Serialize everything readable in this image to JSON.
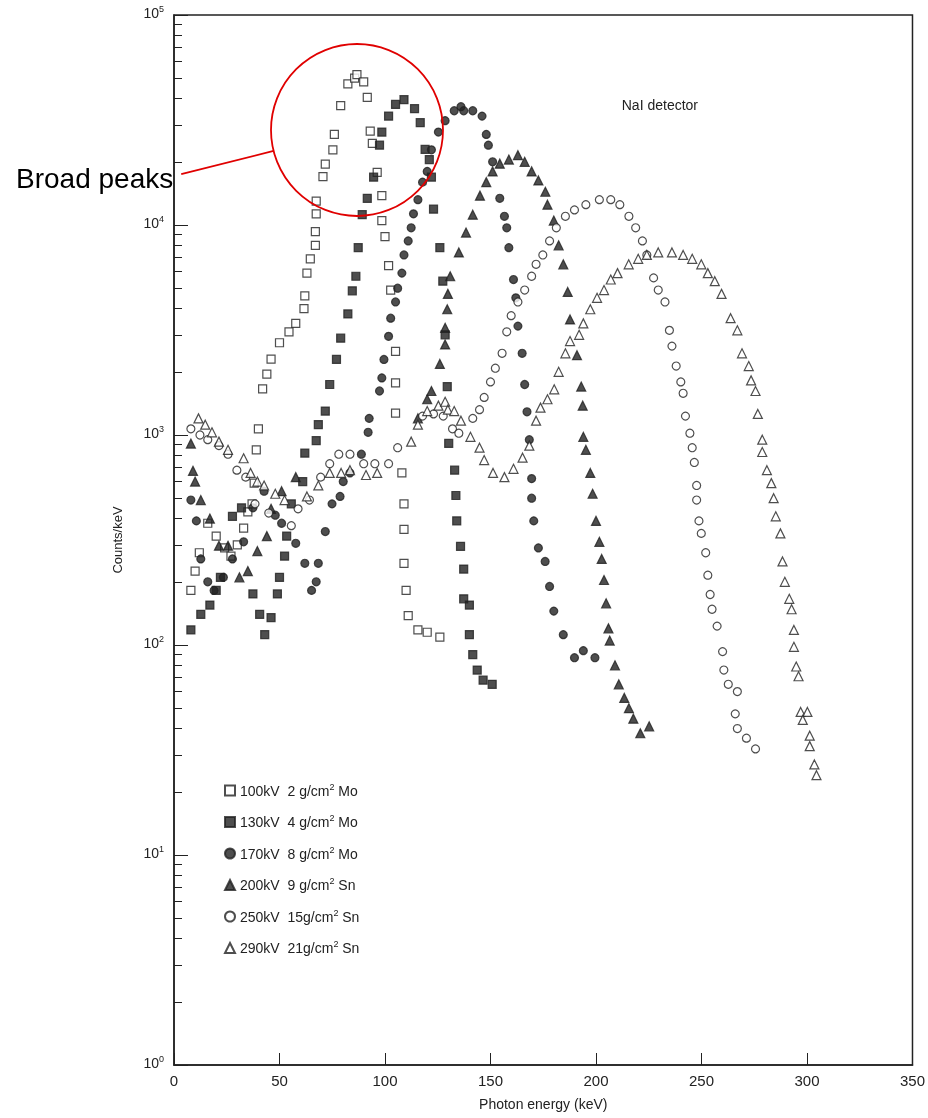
{
  "chart_data": {
    "type": "scatter",
    "xlabel": "Photon energy (keV)",
    "ylabel": "Counts/keV",
    "annotations": [
      "NaI detector",
      "Broad peaks"
    ],
    "log": "y",
    "grid": false,
    "legend": "bottom left",
    "xlim": [
      0,
      350
    ],
    "xticks": [
      0,
      50,
      100,
      150,
      200,
      250,
      300,
      350
    ],
    "ylim": [
      1,
      100000
    ],
    "yticks": [
      {
        "value": 1,
        "label": "10$^{0}$"
      },
      {
        "value": 10,
        "label": "10$^{1}$"
      },
      {
        "value": 100,
        "label": "10$^{2}$"
      },
      {
        "value": 1000,
        "label": "10$^{3}$"
      },
      {
        "value": 10000,
        "label": "10$^{4}$"
      },
      {
        "value": 100000,
        "label": "10$^{5}$"
      }
    ],
    "series": [
      {
        "name": "100kV  2 g/cm$^{2}$ Mo",
        "color": "#ffffff",
        "marker": "square",
        "x": [
          8,
          10,
          12,
          16,
          20,
          24,
          27,
          30,
          33,
          35,
          37,
          38,
          39,
          40,
          42,
          44,
          46,
          50,
          54.5,
          57.7,
          61.6,
          62,
          63,
          64.6,
          67,
          67,
          67.4,
          67.4,
          70.6,
          71.7,
          75.3,
          76,
          79,
          82.4,
          85.6,
          86.7,
          89.9,
          91.6,
          93,
          94,
          96.3,
          98.5,
          98.5,
          100,
          101.7,
          102.7,
          105,
          105,
          105,
          108,
          109,
          109,
          109,
          110,
          111,
          115.6,
          120,
          126
        ],
        "values": [
          182,
          225,
          275,
          380,
          330,
          290,
          265,
          300,
          360,
          430,
          470,
          590,
          850,
          1070,
          1660,
          1950,
          2300,
          2750,
          3100,
          3400,
          4000,
          4600,
          5900,
          6900,
          8000,
          9300,
          11300,
          13000,
          17000,
          19500,
          22800,
          27000,
          37000,
          47000,
          50000,
          52000,
          48000,
          40500,
          28000,
          24500,
          17800,
          13800,
          10500,
          8800,
          6400,
          4900,
          2500,
          1770,
          1270,
          660,
          470,
          355,
          245,
          182,
          138,
          118,
          115,
          109
        ]
      },
      {
        "name": "130kV  4 g/cm$^{2}$ Mo",
        "color": "#222222",
        "marker": "square",
        "x": [
          8,
          12.7,
          17,
          20,
          22,
          27.7,
          32,
          37.4,
          40.6,
          43,
          46,
          49,
          50,
          52.4,
          53.4,
          55.6,
          61,
          62,
          67.4,
          68.4,
          71.7,
          73.8,
          77,
          79,
          82.4,
          84.5,
          86.2,
          87.3,
          89.2,
          91.6,
          94.6,
          97.4,
          98.5,
          101.7,
          105,
          109,
          114,
          116.7,
          119,
          121,
          122,
          123,
          126,
          127.4,
          128.5,
          129.5,
          130.2,
          133,
          133.6,
          134,
          135.8,
          137.3,
          137.3,
          140,
          140,
          141.6,
          143.7,
          146.5,
          150.8
        ],
        "values": [
          118,
          140,
          155,
          182,
          210,
          410,
          450,
          175,
          140,
          112,
          135,
          175,
          210,
          265,
          330,
          470,
          600,
          820,
          940,
          1120,
          1300,
          1740,
          2290,
          2890,
          3770,
          4860,
          5700,
          7800,
          11200,
          13400,
          16900,
          24000,
          27700,
          33000,
          37500,
          39500,
          35800,
          30700,
          22900,
          20500,
          16900,
          11900,
          7800,
          5400,
          3000,
          1700,
          912,
          680,
          515,
          390,
          295,
          230,
          166,
          155,
          112,
          90,
          76,
          68,
          65
        ]
      },
      {
        "name": "170kV  8 g/cm$^{2}$ Mo",
        "color": "#222222",
        "marker": "circle",
        "x": [
          8,
          10.6,
          12.7,
          16,
          19,
          23.4,
          27.7,
          33,
          37.4,
          42.7,
          48,
          51,
          57.7,
          62,
          65.2,
          67.4,
          68.4,
          71.7,
          74.9,
          78.7,
          80.2,
          83.4,
          88.8,
          92,
          92.5,
          97.4,
          98.5,
          99.5,
          101.7,
          102.7,
          105,
          106,
          108,
          109,
          111,
          112.4,
          113.5,
          115.6,
          117.8,
          120,
          122,
          125.3,
          128.5,
          132.8,
          136,
          137.3,
          141.6,
          146,
          148,
          149,
          151,
          154.4,
          156.6,
          157.7,
          158.7,
          160.9,
          162,
          163,
          165,
          166.2,
          167.3,
          168.4,
          169.5,
          169.5,
          170.5,
          172.7,
          175.9,
          178,
          180,
          184.5,
          189.8,
          194,
          199.5
        ],
        "values": [
          490,
          390,
          257,
          200,
          182,
          210,
          257,
          310,
          450,
          540,
          415,
          380,
          305,
          245,
          182,
          200,
          245,
          347,
          470,
          510,
          600,
          660,
          810,
          1030,
          1200,
          1620,
          1870,
          2290,
          2950,
          3600,
          4300,
          5000,
          5900,
          7200,
          8400,
          9700,
          11300,
          13200,
          16000,
          18000,
          22800,
          27700,
          31400,
          35000,
          36600,
          35000,
          35000,
          33000,
          27000,
          24000,
          20000,
          13400,
          11000,
          9700,
          7800,
          5500,
          4500,
          3300,
          2450,
          1740,
          1290,
          950,
          620,
          500,
          390,
          290,
          250,
          190,
          145,
          112,
          87,
          94,
          87
        ]
      },
      {
        "name": "200kV  9 g/cm$^{2}$ Sn",
        "color": "#222222",
        "marker": "triangle",
        "x": [
          8,
          9,
          10,
          12.7,
          17,
          21.3,
          25.6,
          31,
          35,
          39.5,
          44,
          46,
          51,
          57.7,
          115.6,
          120,
          122,
          126,
          128.5,
          128.5,
          129.5,
          129.8,
          130.9,
          135,
          138.4,
          141.6,
          145,
          148,
          151,
          154.4,
          158.7,
          163,
          166.2,
          169.5,
          172.7,
          176,
          177,
          180,
          182.3,
          184.5,
          186.6,
          187.7,
          191,
          193,
          193.7,
          194,
          195.2,
          197.3,
          198.4,
          200,
          201.6,
          202.7,
          203.8,
          204.8,
          205.9,
          206.5,
          209,
          210.8,
          213.4,
          215.6,
          217.7,
          221,
          225.2
        ],
        "values": [
          910,
          675,
          600,
          490,
          400,
          297,
          297,
          210,
          225,
          280,
          330,
          445,
          540,
          630,
          1200,
          1480,
          1620,
          2180,
          2700,
          3240,
          3970,
          4700,
          5700,
          7400,
          9200,
          11200,
          13800,
          16000,
          18000,
          19600,
          20500,
          21500,
          20000,
          18000,
          16300,
          14400,
          12500,
          10500,
          8000,
          6500,
          4800,
          3550,
          2400,
          1700,
          1380,
          980,
          850,
          660,
          525,
          390,
          310,
          257,
          204,
          158,
          120,
          105,
          80,
          65,
          56,
          50,
          44.6,
          38,
          41
        ]
      },
      {
        "name": "250kV  15g/cm$^{2}$ Sn",
        "color": "#ffffff",
        "marker": "circle",
        "x": [
          8,
          12.3,
          16,
          21.3,
          25.6,
          29.8,
          34,
          38.4,
          44.9,
          55.6,
          58.8,
          64.2,
          69.5,
          73.8,
          78.1,
          83.4,
          89.9,
          95.2,
          101.7,
          106,
          117.8,
          123,
          127.6,
          132,
          135,
          141.6,
          144.8,
          147,
          150,
          152.3,
          155.5,
          157.7,
          159.8,
          163,
          166.2,
          169.5,
          171.6,
          174.8,
          178,
          181.2,
          185.5,
          189.8,
          195.2,
          201.6,
          207,
          211.3,
          215.6,
          218.8,
          222,
          224.1,
          227.3,
          229.5,
          232.7,
          234.8,
          236,
          238,
          240.2,
          241.3,
          242.4,
          244.5,
          245.6,
          246.6,
          247.7,
          247.7,
          248.8,
          249.9,
          252,
          253,
          254.1,
          255,
          257.4,
          260,
          260.6,
          262.7,
          267,
          266,
          267,
          271.3,
          275.6
        ],
        "values": [
          1070,
          1000,
          950,
          890,
          810,
          680,
          630,
          470,
          425,
          370,
          445,
          490,
          630,
          730,
          810,
          810,
          730,
          730,
          730,
          870,
          1230,
          1260,
          1230,
          1070,
          1020,
          1200,
          1320,
          1510,
          1790,
          2080,
          2450,
          3100,
          3700,
          4300,
          4900,
          5700,
          6500,
          7200,
          8400,
          9700,
          11000,
          11800,
          12500,
          13200,
          13200,
          12500,
          11000,
          9700,
          8400,
          7200,
          5600,
          4900,
          4300,
          3150,
          2650,
          2130,
          1790,
          1580,
          1230,
          1020,
          870,
          740,
          575,
          490,
          390,
          340,
          275,
          215,
          174,
          148,
          123,
          93,
          76,
          65,
          60,
          47,
          40,
          36,
          32
        ]
      },
      {
        "name": "290kV  21g/cm$^{2}$ Sn",
        "color": "#ffffff",
        "marker": "triangle",
        "x": [
          11.6,
          14.8,
          18,
          21.3,
          25.6,
          33,
          36.3,
          39.5,
          42.7,
          48,
          52.4,
          63,
          68.4,
          73.8,
          79.2,
          83.4,
          91,
          96.3,
          112.4,
          115.6,
          120,
          125.3,
          128.5,
          129.8,
          132.8,
          136,
          140.5,
          144.8,
          147,
          151.2,
          156.6,
          160.9,
          165.2,
          168.4,
          171.6,
          173.7,
          177,
          180.2,
          182.3,
          185.5,
          187.7,
          192,
          194,
          197.3,
          200.5,
          203.8,
          207,
          210.2,
          215.5,
          220,
          224.1,
          229.5,
          236,
          241.3,
          245.6,
          249.9,
          253,
          256.3,
          259.5,
          263.8,
          267,
          269.2,
          272.4,
          273.5,
          275.6,
          276.7,
          278.8,
          278.8,
          281,
          283.1,
          284.2,
          285.2,
          287.4,
          288.4,
          289.5,
          291.6,
          292.7,
          293.8,
          293.8,
          294.9,
          296,
          297,
          300.2,
          298,
          301.3,
          301.3,
          303.5,
          304.5
        ],
        "values": [
          1200,
          1120,
          1030,
          930,
          850,
          775,
          660,
          600,
          575,
          525,
          490,
          510,
          575,
          660,
          660,
          680,
          645,
          660,
          930,
          1120,
          1300,
          1380,
          1440,
          1320,
          1300,
          1170,
          980,
          870,
          760,
          660,
          630,
          690,
          780,
          890,
          1170,
          1350,
          1480,
          1650,
          2000,
          2450,
          2800,
          3000,
          3400,
          3970,
          4500,
          4900,
          5500,
          5900,
          6500,
          6900,
          7200,
          7400,
          7400,
          7200,
          6900,
          6500,
          5900,
          5400,
          4700,
          3600,
          3150,
          2450,
          2130,
          1820,
          1620,
          1260,
          950,
          830,
          680,
          590,
          500,
          410,
          340,
          250,
          200,
          166,
          148,
          118,
          98,
          79,
          71,
          48,
          48,
          44,
          37,
          33,
          27,
          24
        ]
      }
    ]
  }
}
